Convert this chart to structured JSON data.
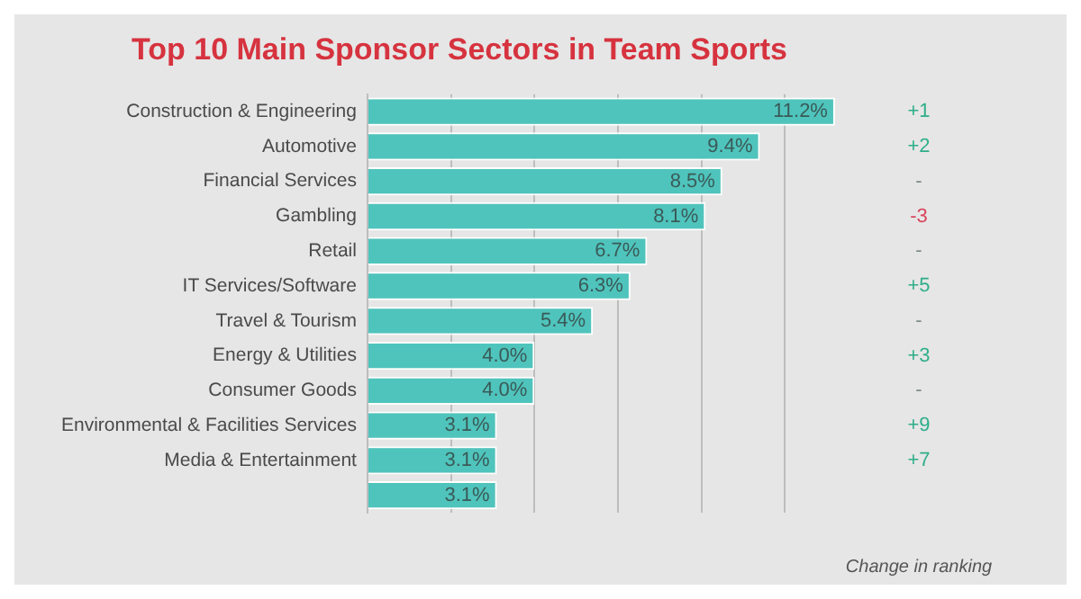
{
  "chart_data": {
    "type": "bar",
    "orientation": "horizontal",
    "title": "Top 10 Main Sponsor Sectors in Team Sports",
    "categories": [
      "Construction & Engineering",
      "Automotive",
      "Financial Services",
      "Gambling",
      "Retail",
      "IT Services/Software",
      "Travel & Tourism",
      "Energy & Utilities",
      "Consumer Goods",
      "Environmental & Facilities Services",
      "Media & Entertainment",
      null
    ],
    "values": [
      11.2,
      9.4,
      8.5,
      8.1,
      6.7,
      6.3,
      5.4,
      4.0,
      4.0,
      3.1,
      3.1,
      3.1
    ],
    "value_labels": [
      "11.2%",
      "9.4%",
      "8.5%",
      "8.1%",
      "6.7%",
      "6.3%",
      "5.4%",
      "4.0%",
      "4.0%",
      "3.1%",
      "3.1%",
      "3.1%"
    ],
    "color": "#4fc4bc",
    "xticks": [
      {
        "value": 0,
        "label": null
      },
      {
        "value": 2,
        "label": null
      },
      {
        "value": 4,
        "label": null
      },
      {
        "value": 6,
        "label": null
      },
      {
        "value": 8,
        "label": null
      },
      {
        "value": 10,
        "label": null
      }
    ],
    "grid": "x",
    "tick_labels": "y",
    "legend": false,
    "annotations": [
      "+1",
      "+2",
      "-",
      "-3",
      "-",
      "+5",
      "-",
      "+3",
      "-",
      "+9",
      "+7",
      "Change in ranking"
    ]
  }
}
